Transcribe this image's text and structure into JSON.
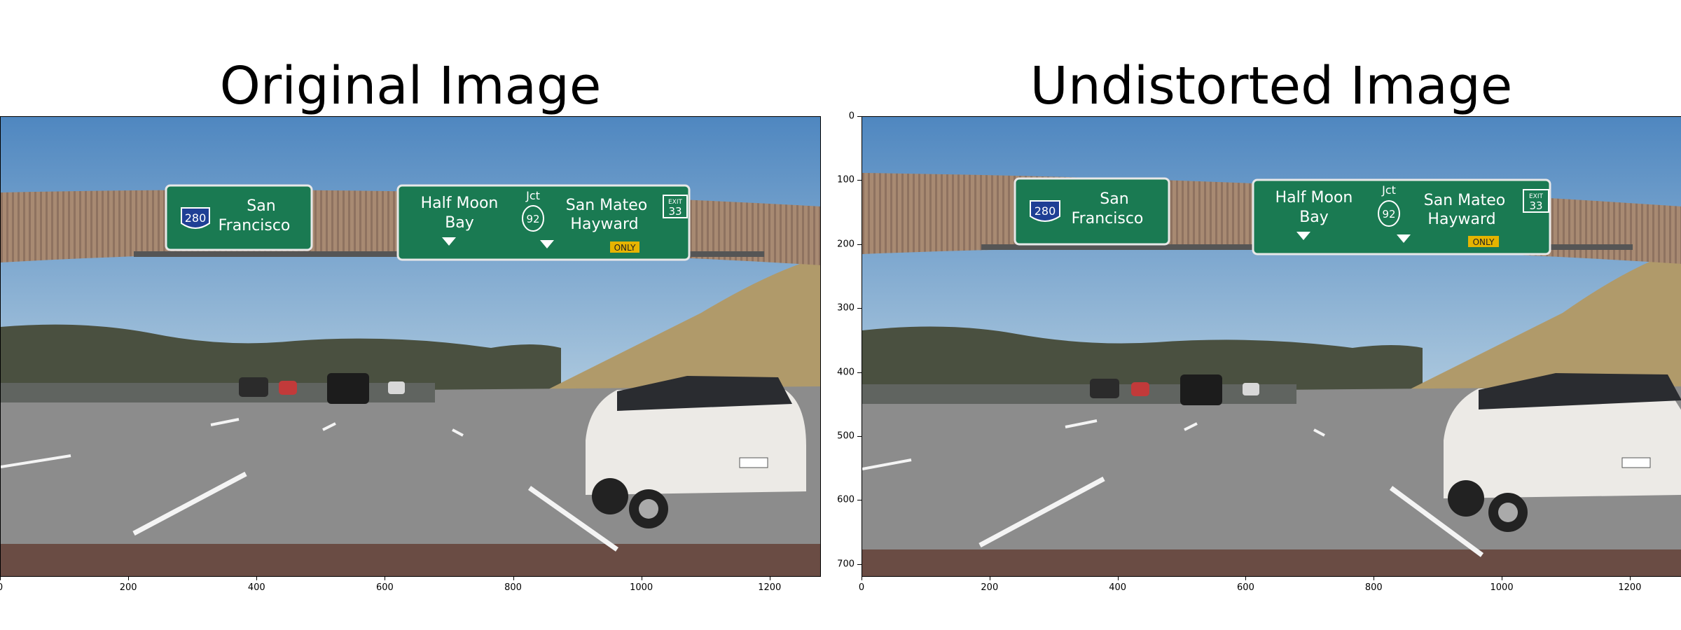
{
  "titles": {
    "left": "Original Image",
    "right": "Undistorted Image"
  },
  "axes": {
    "x_ticks": [
      "0",
      "200",
      "400",
      "600",
      "800",
      "1000",
      "1200"
    ],
    "y_ticks_right": [
      "0",
      "100",
      "200",
      "300",
      "400",
      "500",
      "600",
      "700"
    ]
  },
  "sign": {
    "shield_280": "280",
    "left_panel_line1": "San",
    "left_panel_line2": "Francisco",
    "mid_line1": "Half Moon",
    "mid_line2": "Bay",
    "jct": "Jct",
    "shield_92": "92",
    "right_line1": "San Mateo",
    "right_line2": "Hayward",
    "exit_label": "EXIT",
    "exit_number": "33",
    "only": "ONLY"
  },
  "colors": {
    "sky": "#5a8fc4",
    "sign_green": "#1a7a52",
    "bridge": "#a88a72",
    "road": "#8a8a8a",
    "grass": "#b09a6a",
    "hills": "#4a5040"
  }
}
